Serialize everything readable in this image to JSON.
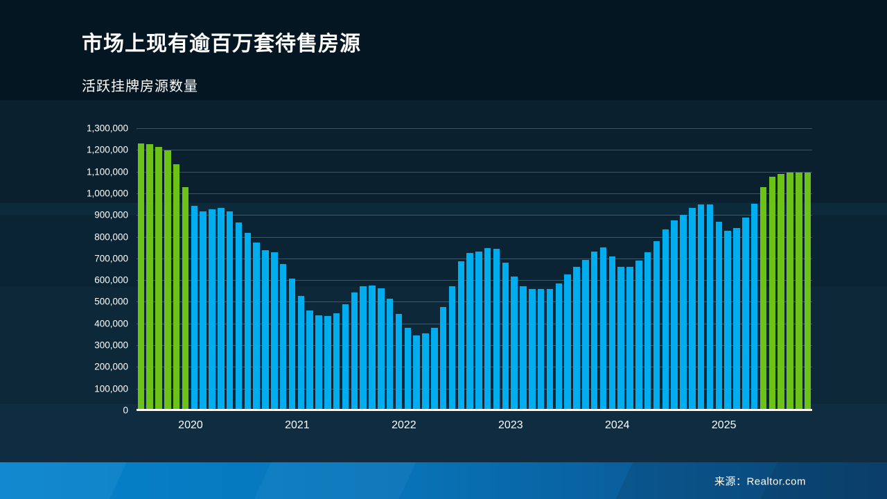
{
  "header": {
    "title": "市场上现有逾百万套待售房源",
    "subtitle": "活跃挂牌房源数量"
  },
  "footer": {
    "source_label": "来源：Realtor.com"
  },
  "chart_data": {
    "type": "bar",
    "title": "活跃挂牌房源数量",
    "ylabel": "",
    "xlabel": "",
    "ylim": [
      0,
      1300000
    ],
    "ytick_step": 100000,
    "ytick_labels": [
      "0",
      "100,000",
      "200,000",
      "300,000",
      "400,000",
      "500,000",
      "600,000",
      "700,000",
      "800,000",
      "900,000",
      "1,000,000",
      "1,100,000",
      "1,200,000",
      "1,300,000"
    ],
    "grid": true,
    "legend": "none",
    "color_rule": "bars with value >= 1000000 are green (above one million), otherwise blue",
    "colors": {
      "above_million": "#6cc217",
      "below_million": "#00aeef"
    },
    "year_tick_labels": [
      "2020",
      "2021",
      "2022",
      "2023",
      "2024",
      "2025"
    ],
    "x": [
      "2019-07",
      "2019-08",
      "2019-09",
      "2019-10",
      "2019-11",
      "2019-12",
      "2020-01",
      "2020-02",
      "2020-03",
      "2020-04",
      "2020-05",
      "2020-06",
      "2020-07",
      "2020-08",
      "2020-09",
      "2020-10",
      "2020-11",
      "2020-12",
      "2021-01",
      "2021-02",
      "2021-03",
      "2021-04",
      "2021-05",
      "2021-06",
      "2021-07",
      "2021-08",
      "2021-09",
      "2021-10",
      "2021-11",
      "2021-12",
      "2022-01",
      "2022-02",
      "2022-03",
      "2022-04",
      "2022-05",
      "2022-06",
      "2022-07",
      "2022-08",
      "2022-09",
      "2022-10",
      "2022-11",
      "2022-12",
      "2023-01",
      "2023-02",
      "2023-03",
      "2023-04",
      "2023-05",
      "2023-06",
      "2023-07",
      "2023-08",
      "2023-09",
      "2023-10",
      "2023-11",
      "2023-12",
      "2024-01",
      "2024-02",
      "2024-03",
      "2024-04",
      "2024-05",
      "2024-06",
      "2024-07",
      "2024-08",
      "2024-09",
      "2024-10",
      "2024-11",
      "2024-12",
      "2025-01",
      "2025-02",
      "2025-03",
      "2025-04",
      "2025-05",
      "2025-06",
      "2025-07",
      "2025-08",
      "2025-09",
      "2025-10"
    ],
    "values": [
      1230000,
      1228000,
      1214000,
      1198000,
      1133000,
      1028000,
      942000,
      918000,
      926000,
      933000,
      918000,
      866000,
      818000,
      773000,
      738000,
      728000,
      675000,
      608000,
      528000,
      460000,
      437000,
      434000,
      447000,
      488000,
      544000,
      573000,
      576000,
      562000,
      514000,
      444000,
      379000,
      346000,
      355000,
      381000,
      477000,
      573000,
      686000,
      725000,
      730000,
      748000,
      744000,
      679000,
      615000,
      573000,
      560000,
      558000,
      558000,
      585000,
      625000,
      660000,
      693000,
      732000,
      750000,
      709000,
      661000,
      661000,
      690000,
      728000,
      781000,
      835000,
      875000,
      900000,
      932000,
      948000,
      950000,
      868000,
      828000,
      840000,
      887000,
      953000,
      1030000,
      1075000,
      1090000,
      1095000,
      1095000,
      1095000
    ]
  }
}
